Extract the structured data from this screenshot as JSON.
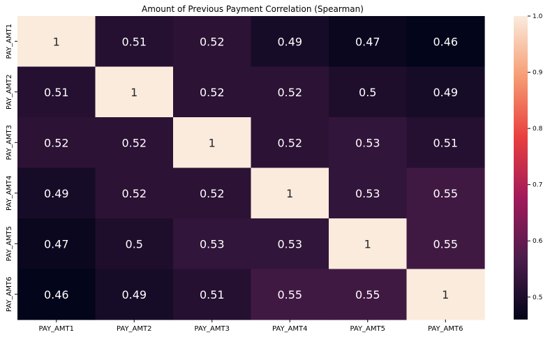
{
  "chart_data": {
    "type": "heatmap",
    "title": "Amount of Previous Payment Correlation (Spearman)",
    "x_categories": [
      "PAY_AMT1",
      "PAY_AMT2",
      "PAY_AMT3",
      "PAY_AMT4",
      "PAY_AMT5",
      "PAY_AMT6"
    ],
    "y_categories": [
      "PAY_AMT1",
      "PAY_AMT2",
      "PAY_AMT3",
      "PAY_AMT4",
      "PAY_AMT5",
      "PAY_AMT6"
    ],
    "values": [
      [
        1,
        0.51,
        0.52,
        0.49,
        0.47,
        0.46
      ],
      [
        0.51,
        1,
        0.52,
        0.52,
        0.5,
        0.49
      ],
      [
        0.52,
        0.52,
        1,
        0.52,
        0.53,
        0.51
      ],
      [
        0.49,
        0.52,
        0.52,
        1,
        0.53,
        0.55
      ],
      [
        0.47,
        0.5,
        0.53,
        0.53,
        1,
        0.55
      ],
      [
        0.46,
        0.49,
        0.51,
        0.55,
        0.55,
        1
      ]
    ],
    "annotations": [
      [
        "1",
        "0.51",
        "0.52",
        "0.49",
        "0.47",
        "0.46"
      ],
      [
        "0.51",
        "1",
        "0.52",
        "0.52",
        "0.5",
        "0.49"
      ],
      [
        "0.52",
        "0.52",
        "1",
        "0.52",
        "0.53",
        "0.51"
      ],
      [
        "0.49",
        "0.52",
        "0.52",
        "1",
        "0.53",
        "0.55"
      ],
      [
        "0.47",
        "0.5",
        "0.53",
        "0.53",
        "1",
        "0.55"
      ],
      [
        "0.46",
        "0.49",
        "0.51",
        "0.55",
        "0.55",
        "1"
      ]
    ],
    "colorbar": {
      "min": 0.46,
      "max": 1.0,
      "ticks": [
        0.5,
        0.6,
        0.7,
        0.8,
        0.9,
        1.0
      ],
      "tick_labels": [
        "0.5",
        "0.6",
        "0.7",
        "0.8",
        "0.9",
        "1.0"
      ]
    },
    "colormap": "rocket",
    "colormap_stops": [
      "#03051a",
      "#4c1d4b",
      "#a11a5b",
      "#e83f3f",
      "#f69c73",
      "#faebdd"
    ]
  }
}
